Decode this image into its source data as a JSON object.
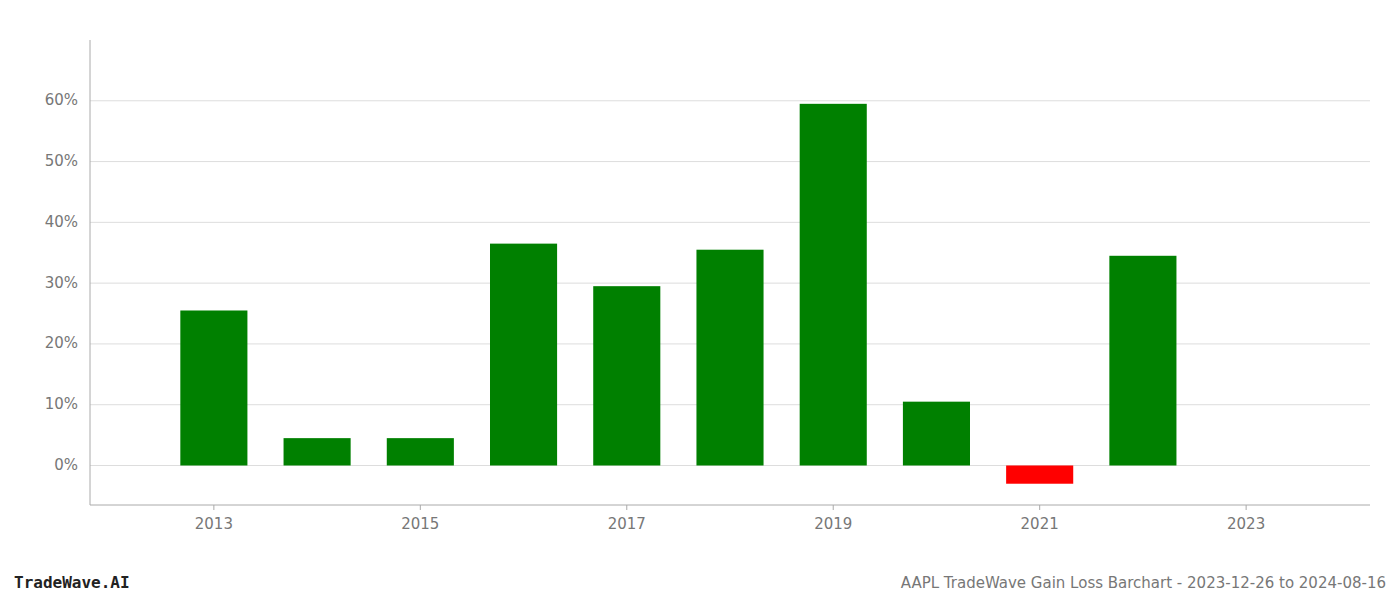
{
  "chart_data": {
    "type": "bar",
    "title": "AAPL TradeWave Gain Loss Barchart - 2023-12-26 to 2024-08-16",
    "annotations": [
      "TradeWave.AI"
    ],
    "x": [
      2013,
      2014,
      2015,
      2016,
      2017,
      2018,
      2019,
      2020,
      2021,
      2022
    ],
    "values": [
      25.5,
      4.5,
      4.5,
      36.5,
      29.5,
      35.5,
      59.5,
      10.5,
      -3,
      34.5
    ],
    "colors": [
      "#008000",
      "#008000",
      "#008000",
      "#008000",
      "#008000",
      "#008000",
      "#008000",
      "#008000",
      "#ff0000",
      "#008000"
    ],
    "xlim": [
      2011.8,
      2024.2
    ],
    "xticks": [
      2013,
      2015,
      2017,
      2019,
      2021,
      2023
    ],
    "ylim": [
      -6.5,
      70
    ],
    "yticks": [
      {
        "value": 0,
        "label": "0%"
      },
      {
        "value": 10,
        "label": "10%"
      },
      {
        "value": 20,
        "label": "20%"
      },
      {
        "value": 30,
        "label": "30%"
      },
      {
        "value": 40,
        "label": "40%"
      },
      {
        "value": 50,
        "label": "50%"
      },
      {
        "value": 60,
        "label": "60%"
      }
    ],
    "grid": true
  }
}
